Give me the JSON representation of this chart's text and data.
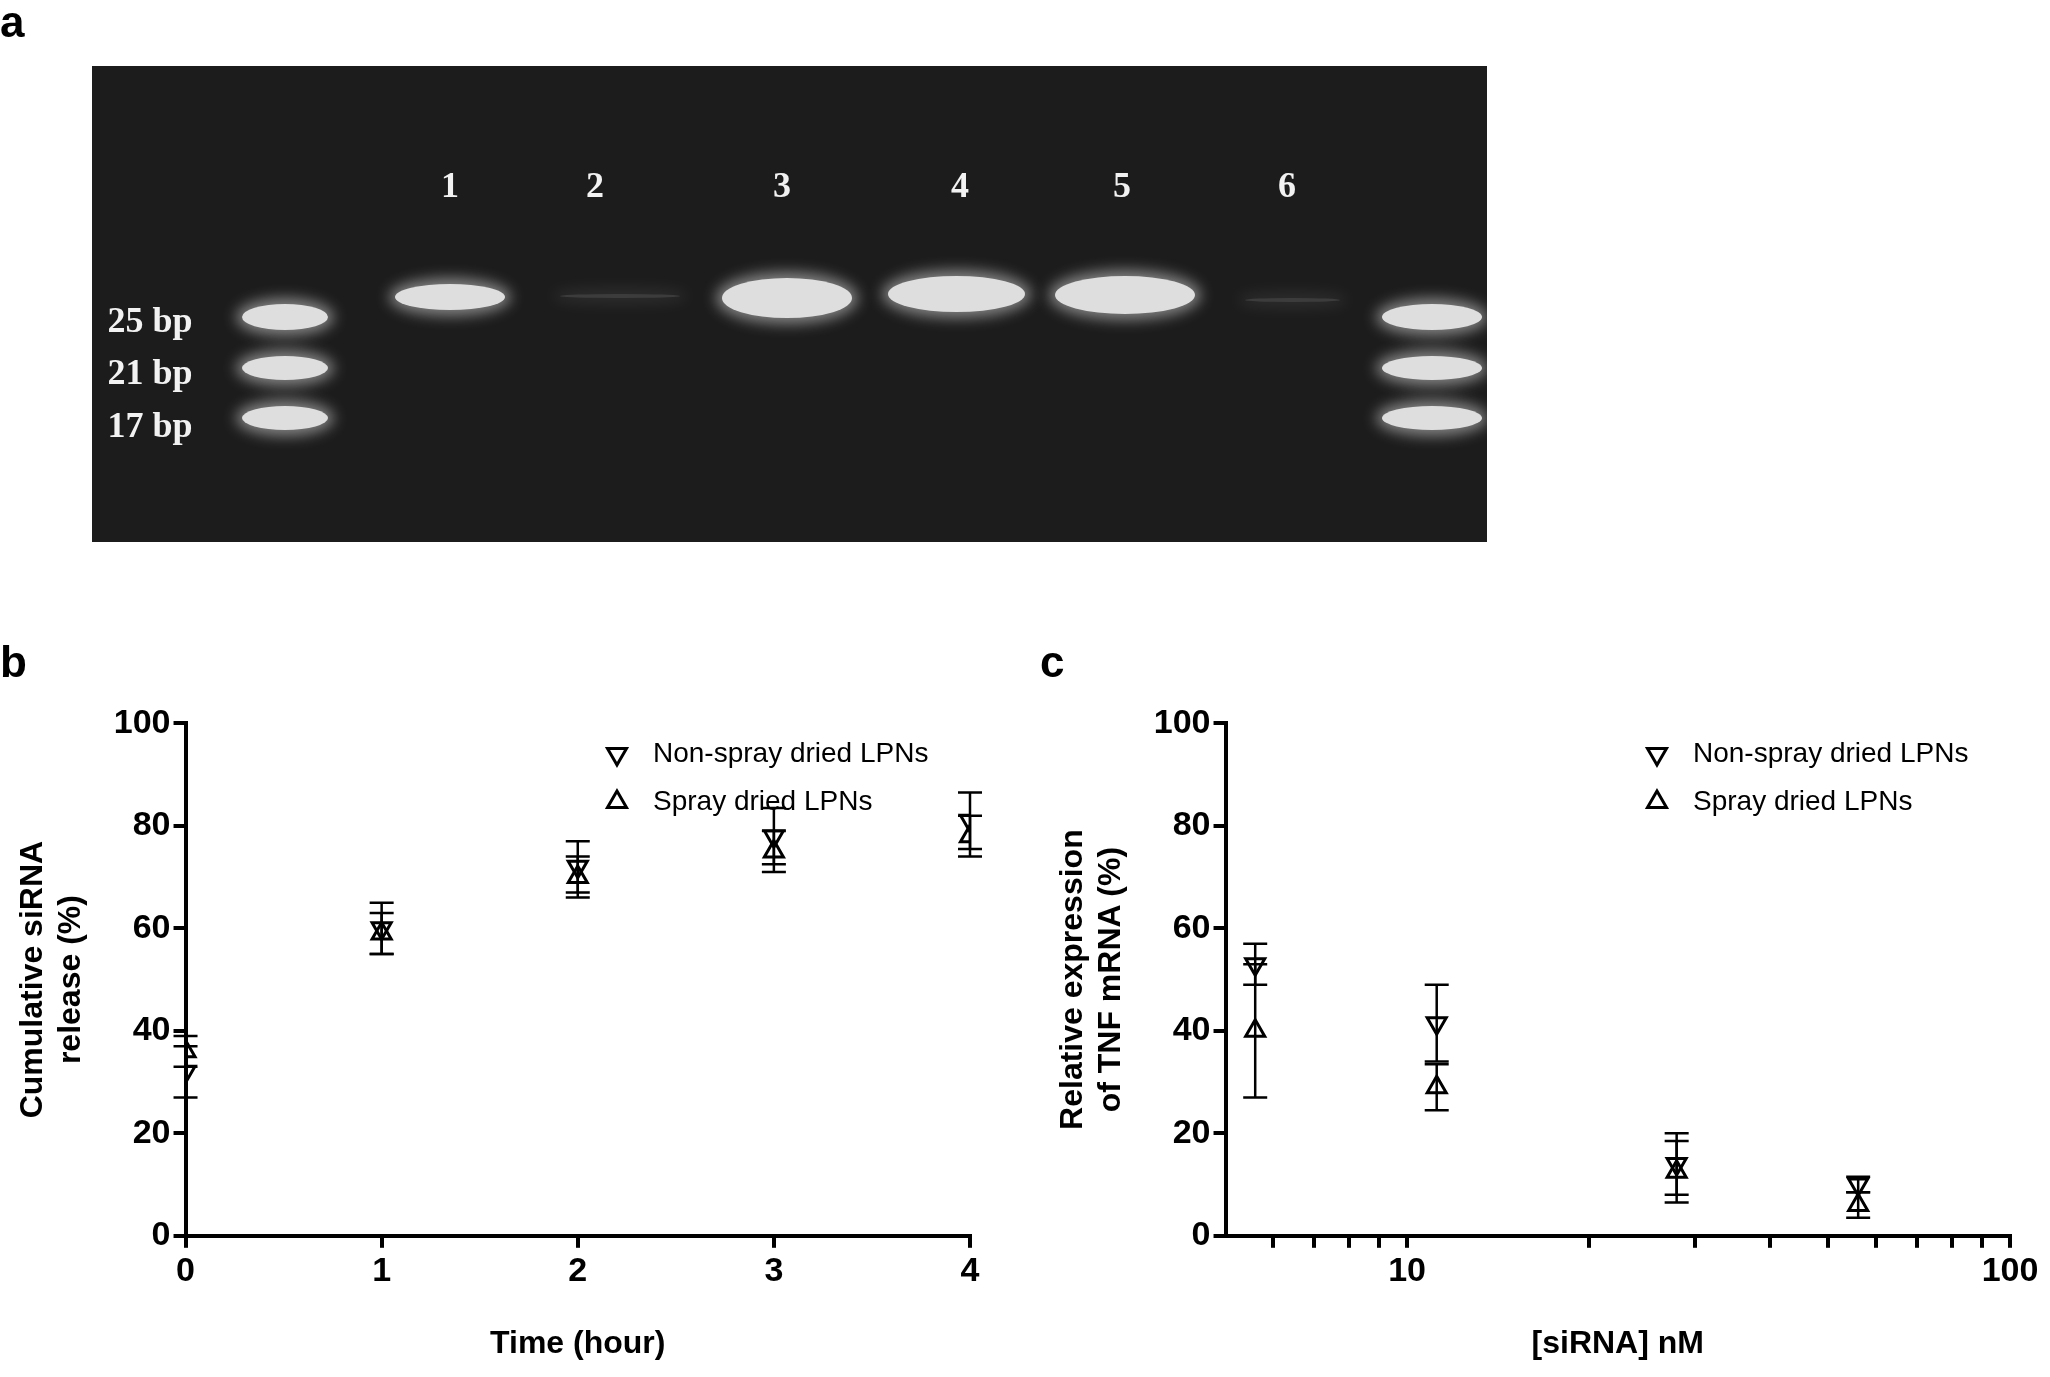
{
  "chart_data": [
    {
      "type": "other",
      "title": "a",
      "annotations": [
        "1",
        "2",
        "3",
        "4",
        "5",
        "6",
        "25 bp",
        "21 bp",
        "17 bp"
      ]
    },
    {
      "type": "scatter",
      "title": "b",
      "xlabel": "Time (hour)",
      "ylabel": "Cumulative siRNA\nrelease (%)",
      "x": [
        0,
        1,
        2,
        3,
        4
      ],
      "xlim": [
        0,
        4
      ],
      "xticks": [
        0,
        1,
        2,
        3,
        4
      ],
      "ylim": [
        0,
        100
      ],
      "yticks": [
        0,
        20,
        40,
        60,
        80,
        100
      ],
      "grid": false,
      "legend": "top right",
      "series": [
        {
          "name": "Non-spray dried LPNs",
          "color": "#000000",
          "marker": "triangle-down",
          "values": [
            32,
            60,
            72,
            78,
            81
          ],
          "errors": [
            5,
            5,
            5,
            5.5,
            5.5
          ]
        },
        {
          "name": "Spray dried LPNs",
          "color": "#000000",
          "marker": "triangle",
          "values": [
            36,
            59,
            70,
            75,
            78
          ],
          "errors": [
            3,
            4,
            4,
            4,
            4
          ]
        }
      ]
    },
    {
      "type": "scatter",
      "title": "c",
      "xlabel": "[siRNA] nM",
      "ylabel": "Relative expression\nof TNF mRNA (%)",
      "log": "x",
      "x": [
        5.6,
        11.2,
        28,
        56
      ],
      "xlim": [
        5,
        100
      ],
      "xticks": [
        {
          "value": 6,
          "label": null
        },
        {
          "value": 7,
          "label": null
        },
        {
          "value": 8,
          "label": null
        },
        {
          "value": 9,
          "label": null
        },
        10,
        {
          "value": 20,
          "label": null
        },
        {
          "value": 30,
          "label": null
        },
        {
          "value": 40,
          "label": null
        },
        {
          "value": 50,
          "label": null
        },
        {
          "value": 60,
          "label": null
        },
        {
          "value": 70,
          "label": null
        },
        {
          "value": 80,
          "label": null
        },
        {
          "value": 90,
          "label": null
        },
        100
      ],
      "ylim": [
        0,
        100
      ],
      "yticks": [
        0,
        20,
        40,
        60,
        80,
        100
      ],
      "grid": false,
      "legend": "top right",
      "series": [
        {
          "name": "Non-spray dried LPNs",
          "color": "#000000",
          "marker": "triangle-down",
          "values": [
            53,
            41.5,
            14,
            10
          ],
          "errors": [
            4,
            7.5,
            6,
            1.5
          ]
        },
        {
          "name": "Spray dried LPNs",
          "color": "#000000",
          "marker": "triangle",
          "values": [
            40,
            29,
            12.5,
            6
          ],
          "errors": [
            13,
            4.5,
            6,
            2.5
          ]
        }
      ]
    }
  ]
}
